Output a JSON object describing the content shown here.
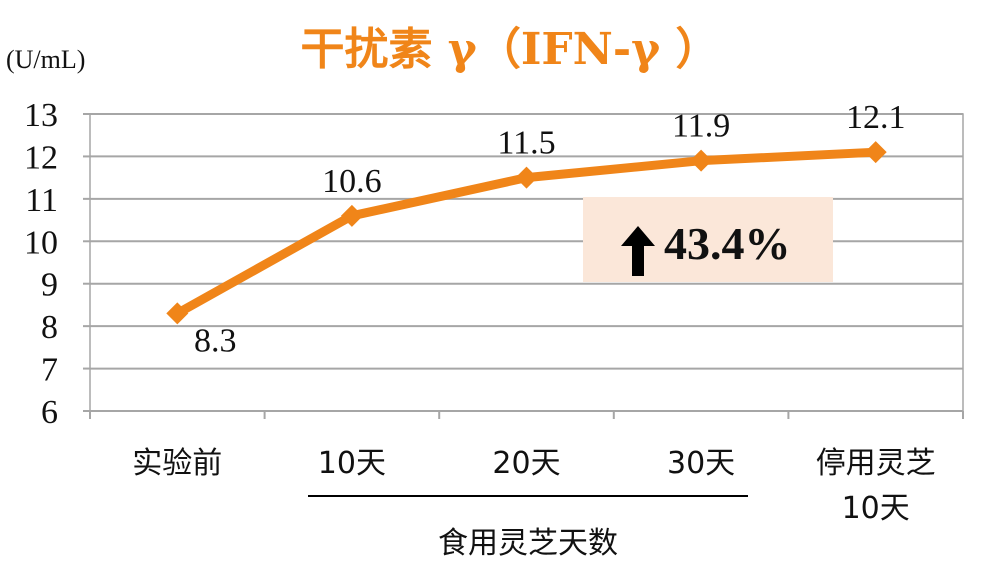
{
  "chart_data": {
    "type": "line",
    "title": "干扰素 γ（IFN-γ ）",
    "ylabel": "(U/mL)",
    "xlabel": "",
    "ylim": [
      6,
      13
    ],
    "yticks": [
      6,
      7,
      8,
      9,
      10,
      11,
      12,
      13
    ],
    "grid": true,
    "categories": [
      [
        "实验前"
      ],
      [
        "10天"
      ],
      [
        "20天"
      ],
      [
        "30天"
      ],
      [
        "停用灵芝",
        "10天"
      ]
    ],
    "values": [
      8.3,
      10.6,
      11.5,
      11.9,
      12.1
    ],
    "value_labels": [
      "8.3",
      "10.6",
      "11.5",
      "11.9",
      "12.1"
    ],
    "group_label": "食用灵芝天数",
    "callout": {
      "text": "43.4%",
      "icon": "up-arrow-icon"
    },
    "colors": {
      "line": "#f08519",
      "title": "#f08519",
      "grid": "#a6a6a6",
      "callout_bg": "#fbe7d9"
    }
  }
}
